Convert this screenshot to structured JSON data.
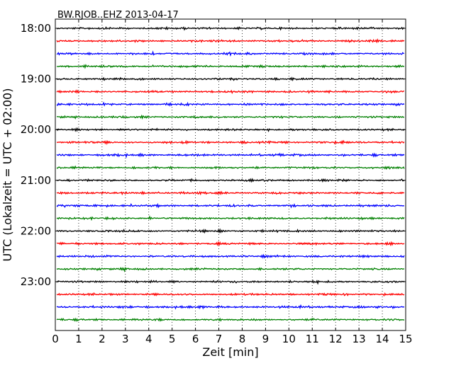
{
  "chart_data": {
    "type": "line",
    "title": "BW.RJOB..EHZ 2013-04-17",
    "xlabel": "Zeit  [min]",
    "ylabel": "UTC (Lokalzeit = UTC + 02:00)",
    "xlim": [
      0,
      15
    ],
    "x_ticks": [
      "0",
      "1",
      "2",
      "3",
      "4",
      "5",
      "6",
      "7",
      "8",
      "9",
      "10",
      "11",
      "12",
      "13",
      "14",
      "15"
    ],
    "y_tick_labels": [
      "18:00",
      "19:00",
      "20:00",
      "21:00",
      "22:00",
      "23:00"
    ],
    "traces_per_hour": 4,
    "trace_minutes": 15,
    "start_time": "18:00",
    "end_time": "24:00",
    "grid": "vertical dotted at each minute",
    "series": [
      {
        "color": "#000000",
        "rows": [
          "18:00",
          "19:00",
          "20:00",
          "21:00",
          "22:00",
          "23:00"
        ]
      },
      {
        "color": "#ff0000",
        "rows": [
          "18:15",
          "19:15",
          "20:15",
          "21:15",
          "22:15",
          "23:15"
        ]
      },
      {
        "color": "#0000ff",
        "rows": [
          "18:30",
          "19:30",
          "20:30",
          "21:30",
          "22:30",
          "23:30"
        ]
      },
      {
        "color": "#008000",
        "rows": [
          "18:45",
          "19:45",
          "20:45",
          "21:45",
          "22:45",
          "23:45"
        ]
      }
    ]
  }
}
